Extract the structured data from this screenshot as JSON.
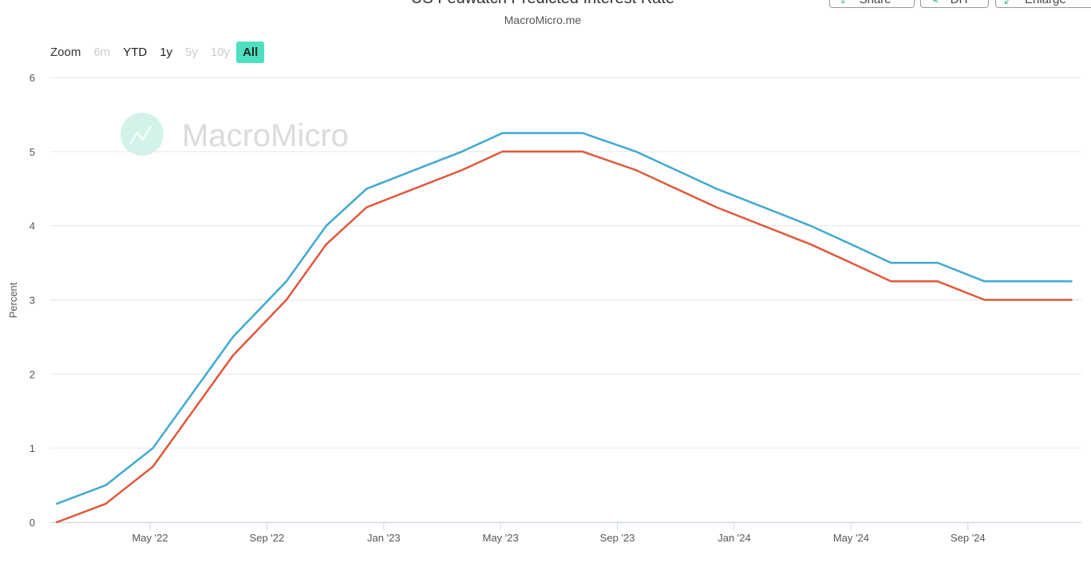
{
  "header": {
    "title": "US Fedwatch Predicted Interest Rate",
    "subtitle": "MacroMicro.me"
  },
  "toolbar": {
    "share": "Share",
    "diy": "DIY",
    "enlarge": "Enlarge"
  },
  "zoom": {
    "label": "Zoom",
    "buttons": [
      {
        "label": "6m",
        "state": "disabled"
      },
      {
        "label": "YTD",
        "state": "normal"
      },
      {
        "label": "1y",
        "state": "normal"
      },
      {
        "label": "5y",
        "state": "disabled"
      },
      {
        "label": "10y",
        "state": "disabled"
      },
      {
        "label": "All",
        "state": "selected"
      }
    ]
  },
  "watermark": "MacroMicro",
  "chart_data": {
    "type": "line",
    "title": "US Fedwatch Predicted Interest Rate",
    "subtitle": "MacroMicro.me",
    "xlabel": "",
    "ylabel": "Percent",
    "ylim": [
      0,
      6
    ],
    "yticks": [
      "0",
      "1",
      "2",
      "3",
      "4",
      "5",
      "6"
    ],
    "xticks": [
      {
        "label": "May '22",
        "date": "2022-05-01"
      },
      {
        "label": "Sep '22",
        "date": "2022-09-01"
      },
      {
        "label": "Jan '23",
        "date": "2023-01-01"
      },
      {
        "label": "May '23",
        "date": "2023-05-01"
      },
      {
        "label": "Sep '23",
        "date": "2023-09-01"
      },
      {
        "label": "Jan '24",
        "date": "2024-01-01"
      },
      {
        "label": "May '24",
        "date": "2024-05-01"
      },
      {
        "label": "Sep '24",
        "date": "2024-09-01"
      }
    ],
    "x": [
      "2022-01-26",
      "2022-03-16",
      "2022-05-04",
      "2022-07-27",
      "2022-09-21",
      "2022-11-02",
      "2022-12-14",
      "2023-03-22",
      "2023-05-03",
      "2023-07-26",
      "2023-09-20",
      "2023-12-13",
      "2024-03-20",
      "2024-05-01",
      "2024-06-12",
      "2024-07-31",
      "2024-09-18",
      "2024-12-18"
    ],
    "series": [
      {
        "color": "#3fa9d0",
        "values": [
          0.25,
          0.5,
          1,
          2.5,
          3.25,
          4,
          4.5,
          5,
          5.25,
          5.25,
          5,
          4.5,
          4,
          3.75,
          3.5,
          3.5,
          3.25,
          3.25
        ]
      },
      {
        "color": "#e0583c",
        "values": [
          0,
          0.25,
          0.75,
          2.25,
          3,
          3.75,
          4.25,
          4.75,
          5,
          5,
          4.75,
          4.25,
          3.75,
          3.5,
          3.25,
          3.25,
          3,
          3
        ]
      }
    ],
    "grid": true,
    "legend": "none"
  }
}
